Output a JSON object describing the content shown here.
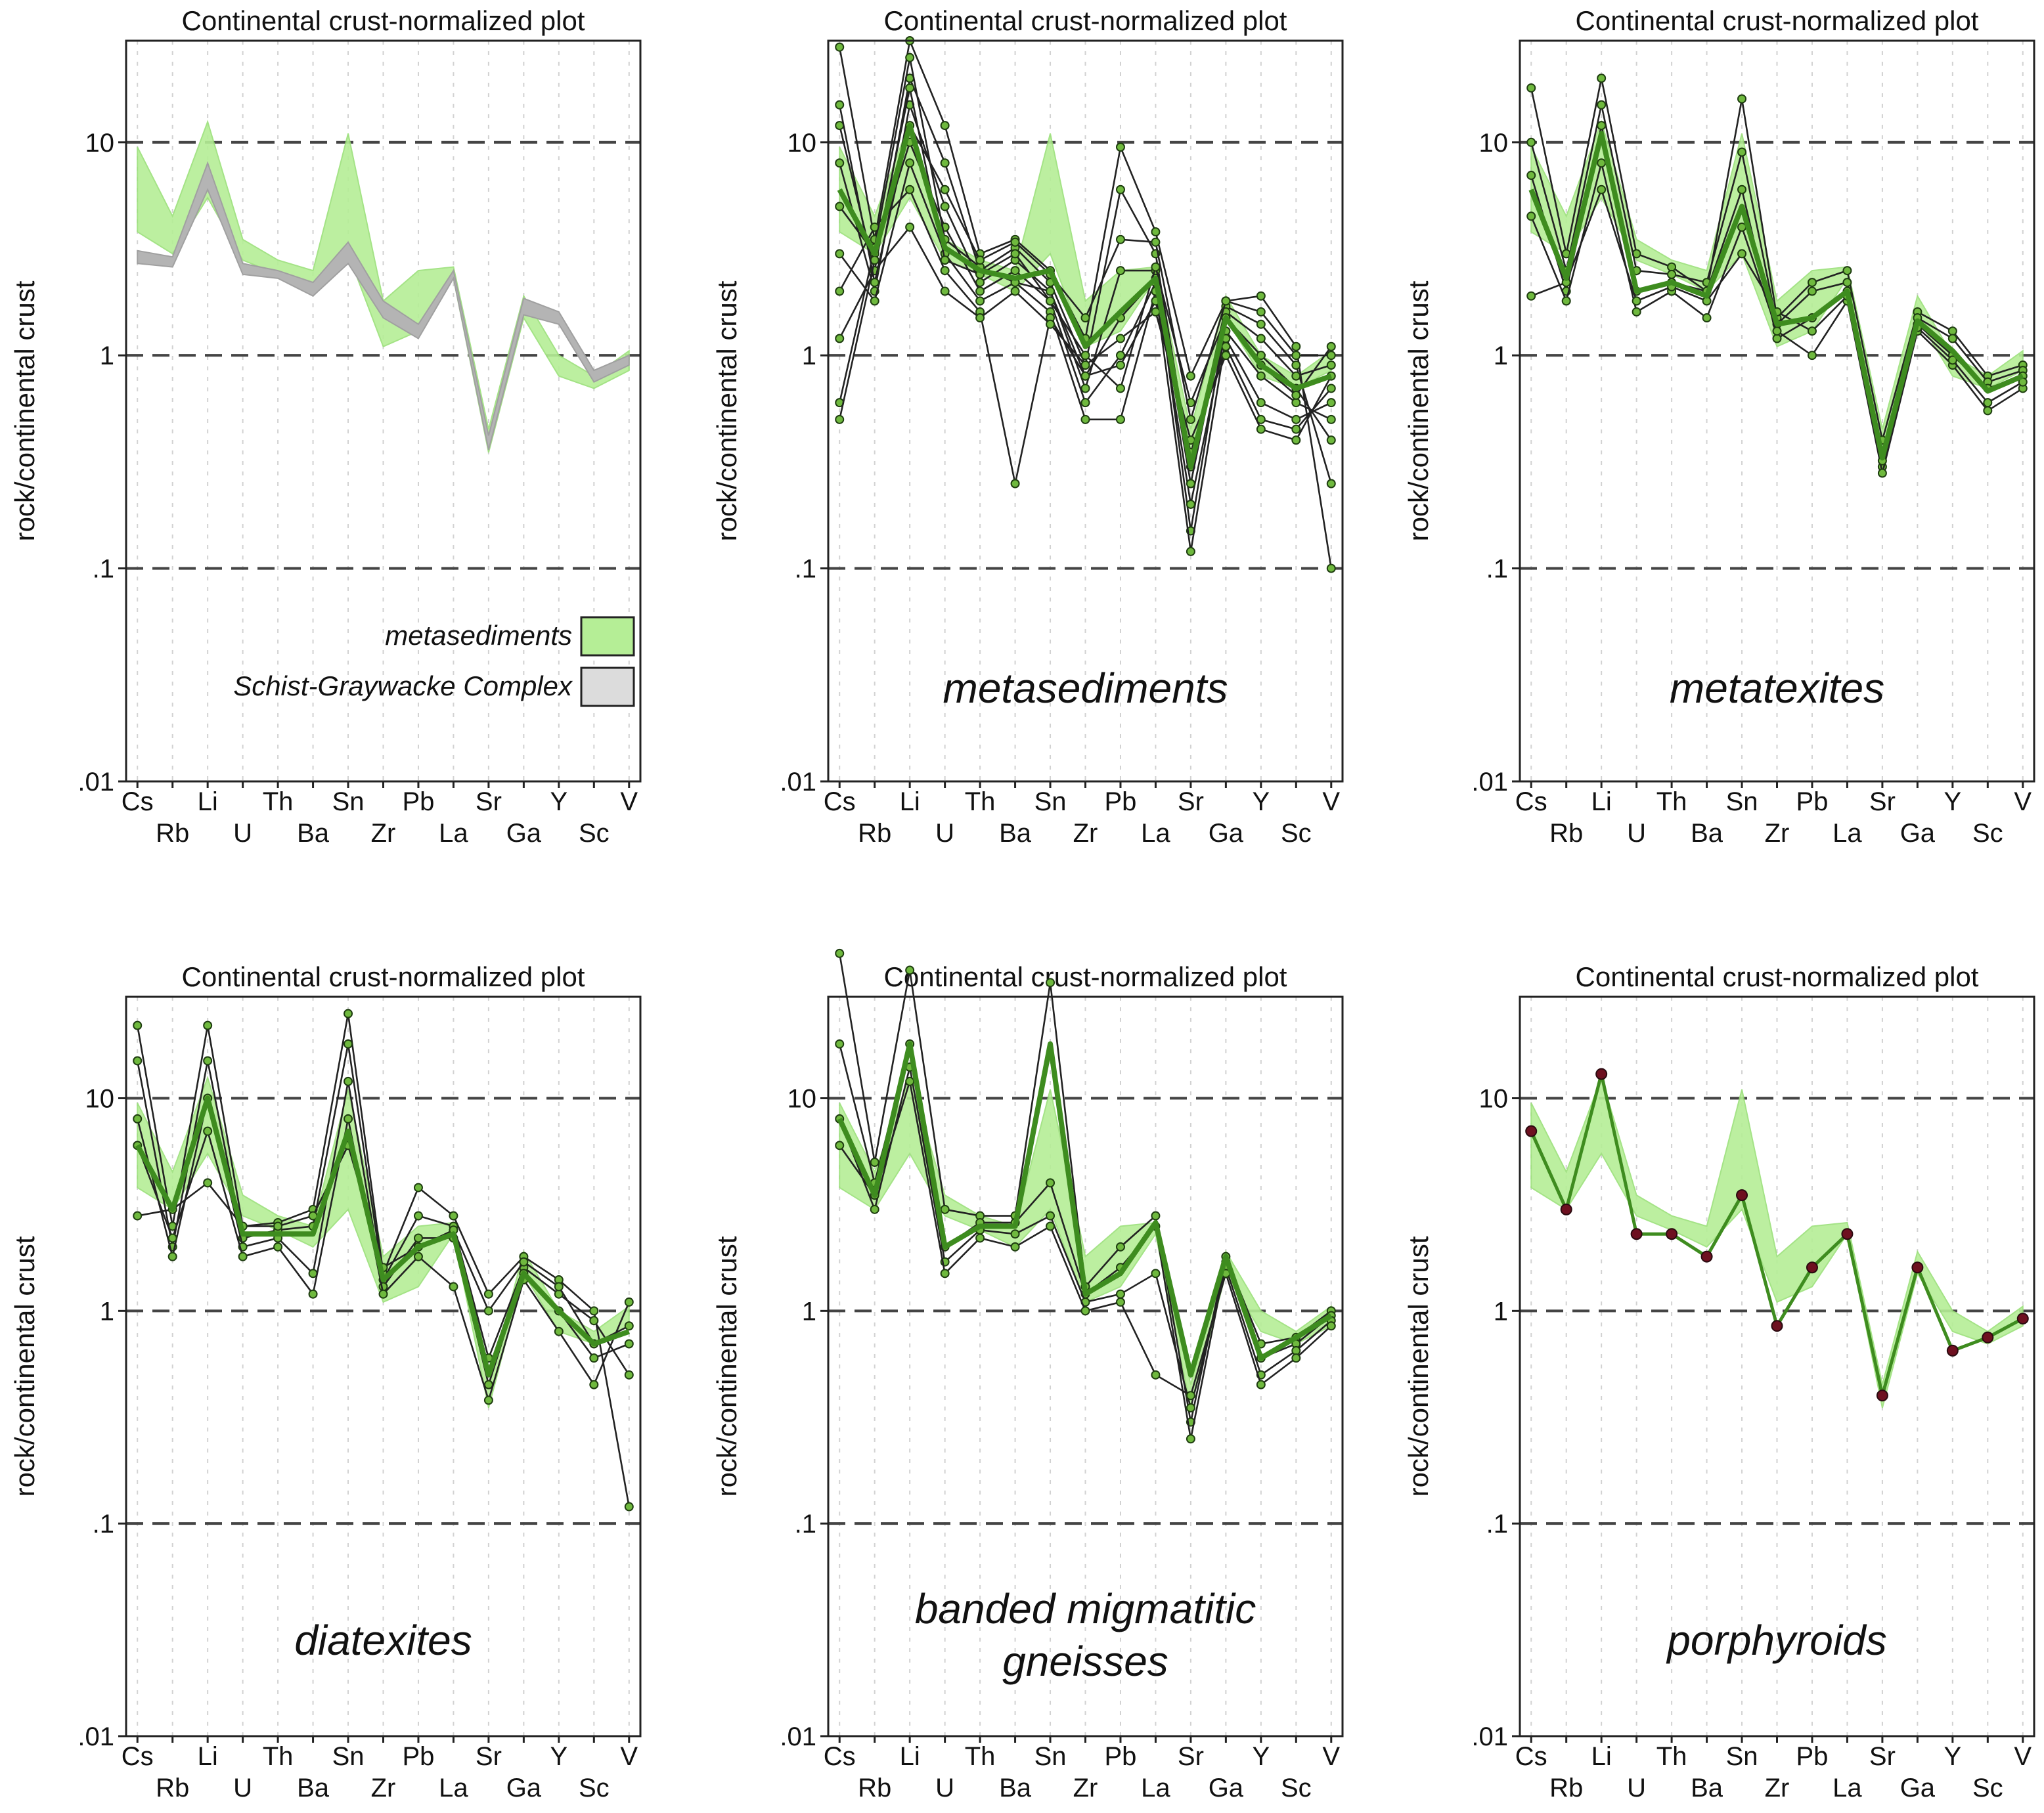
{
  "colors": {
    "band_fill": "#b5ee96",
    "band_edge": "#9be07a",
    "scgw_fill": "#b4b4b4",
    "sample_line": "#222222",
    "mean_line": "#3e8c1f",
    "marker_fill": "#6fb93e",
    "dark_marker": "#6e1020",
    "ref_dash": "#444444",
    "grid": "#d2d2d2"
  },
  "elements": [
    "Cs",
    "Rb",
    "Li",
    "U",
    "Th",
    "Ba",
    "Sn",
    "Zr",
    "Pb",
    "La",
    "Sr",
    "Ga",
    "Y",
    "Sc",
    "V"
  ],
  "ylabel": "rock/continental crust",
  "ytick_labels": [
    ".01",
    ".1",
    "1",
    "10"
  ],
  "legend": [
    {
      "label": "metasediments",
      "color": "#b5ee96"
    },
    {
      "label": "Schist-Graywacke Complex",
      "color": "#dcdcdc"
    }
  ],
  "chart_data": [
    {
      "type": "line",
      "title": "Continental crust-normalized plot",
      "caption": "",
      "yscale": "log",
      "ylim": [
        0.01,
        30
      ],
      "x": [
        "Cs",
        "Rb",
        "Li",
        "U",
        "Th",
        "Ba",
        "Sn",
        "Zr",
        "Pb",
        "La",
        "Sr",
        "Ga",
        "Y",
        "Sc",
        "V"
      ],
      "band": {
        "lower": [
          3.8,
          3.0,
          5.5,
          2.8,
          2.4,
          2.0,
          3.0,
          1.1,
          1.3,
          2.3,
          0.35,
          1.5,
          0.8,
          0.7,
          0.85
        ],
        "upper": [
          9.5,
          4.5,
          12.5,
          3.5,
          2.8,
          2.5,
          11.0,
          1.8,
          2.5,
          2.6,
          0.45,
          1.9,
          1.0,
          0.8,
          1.05
        ]
      },
      "reference_band": {
        "name": "Schist-Graywacke Complex",
        "lower": [
          2.7,
          2.6,
          6.0,
          2.4,
          2.3,
          1.9,
          2.7,
          1.5,
          1.2,
          2.3,
          0.36,
          1.55,
          1.4,
          0.75,
          0.9
        ],
        "upper": [
          3.1,
          2.9,
          8.0,
          2.7,
          2.5,
          2.2,
          3.4,
          1.8,
          1.4,
          2.5,
          0.42,
          1.85,
          1.6,
          0.85,
          1.0
        ]
      }
    },
    {
      "type": "line",
      "title": "Continental crust-normalized plot",
      "caption": "metasediments",
      "yscale": "log",
      "ylim": [
        0.01,
        30
      ],
      "x": [
        "Cs",
        "Rb",
        "Li",
        "U",
        "Th",
        "Ba",
        "Sn",
        "Zr",
        "Pb",
        "La",
        "Sr",
        "Ga",
        "Y",
        "Sc",
        "V"
      ],
      "band": {
        "lower": [
          3.8,
          3.0,
          5.5,
          2.8,
          2.4,
          2.0,
          3.0,
          1.1,
          1.3,
          2.3,
          0.35,
          1.5,
          0.8,
          0.7,
          0.85
        ],
        "upper": [
          9.5,
          4.5,
          12.5,
          3.5,
          2.8,
          2.5,
          11.0,
          1.8,
          2.5,
          2.6,
          0.45,
          1.9,
          1.0,
          0.8,
          1.05
        ]
      },
      "series": [
        {
          "values": [
            28,
            3.5,
            30,
            12,
            3,
            3.5,
            2.5,
            1.2,
            9.5,
            3.8,
            0.8,
            1.8,
            1.9,
            1.1,
            0.1
          ]
        },
        {
          "values": [
            12,
            2.5,
            20,
            8,
            2.5,
            3.2,
            2.2,
            0.9,
            6.0,
            3.0,
            0.3,
            1.7,
            1.4,
            0.9,
            0.25
          ]
        },
        {
          "values": [
            8,
            2.0,
            15,
            5,
            2.2,
            2.8,
            2.0,
            0.7,
            2.5,
            2.5,
            0.15,
            1.5,
            1.0,
            0.7,
            0.4
          ]
        },
        {
          "values": [
            5,
            3.0,
            10,
            4,
            2.0,
            2.5,
            1.8,
            0.6,
            1.0,
            2.2,
            0.2,
            1.3,
            0.8,
            0.6,
            0.5
          ]
        },
        {
          "values": [
            3,
            1.8,
            8,
            3,
            1.8,
            2.2,
            1.6,
            0.5,
            0.5,
            2.0,
            0.12,
            1.2,
            0.6,
            0.5,
            0.6
          ]
        },
        {
          "values": [
            2,
            4.0,
            6,
            2.5,
            1.6,
            0.25,
            1.5,
            0.8,
            0.9,
            1.8,
            0.35,
            1.1,
            0.5,
            0.45,
            0.7
          ]
        },
        {
          "values": [
            1.2,
            2.5,
            4,
            2,
            1.5,
            2.0,
            1.4,
            0.9,
            1.2,
            1.6,
            0.4,
            1.0,
            0.45,
            0.4,
            0.8
          ]
        },
        {
          "values": [
            0.6,
            3.2,
            25,
            3.5,
            2.6,
            2.2,
            2.0,
            0.8,
            1.5,
            2.3,
            0.25,
            1.6,
            1.2,
            0.8,
            0.9
          ]
        },
        {
          "values": [
            0.5,
            2.8,
            18,
            2.8,
            2.4,
            3.0,
            1.8,
            1.0,
            0.7,
            2.6,
            0.6,
            1.5,
            0.9,
            0.65,
            1.1
          ]
        },
        {
          "values": [
            15,
            2.2,
            12,
            6,
            2.8,
            3.4,
            2.4,
            1.5,
            3.5,
            3.4,
            0.5,
            1.8,
            1.6,
            1.0,
            1.0
          ]
        }
      ],
      "mean": [
        6.0,
        3.0,
        12.0,
        3.2,
        2.5,
        2.3,
        2.5,
        1.1,
        1.6,
        2.3,
        0.3,
        1.5,
        0.9,
        0.7,
        0.8
      ]
    },
    {
      "type": "line",
      "title": "Continental crust-normalized plot",
      "caption": "metatexites",
      "yscale": "log",
      "ylim": [
        0.01,
        30
      ],
      "x": [
        "Cs",
        "Rb",
        "Li",
        "U",
        "Th",
        "Ba",
        "Sn",
        "Zr",
        "Pb",
        "La",
        "Sr",
        "Ga",
        "Y",
        "Sc",
        "V"
      ],
      "band": {
        "lower": [
          3.8,
          3.0,
          5.5,
          2.8,
          2.4,
          2.0,
          3.0,
          1.1,
          1.3,
          2.3,
          0.35,
          1.5,
          0.8,
          0.7,
          0.85
        ],
        "upper": [
          9.5,
          4.5,
          12.5,
          3.5,
          2.8,
          2.5,
          11.0,
          1.8,
          2.5,
          2.6,
          0.45,
          1.9,
          1.0,
          0.8,
          1.05
        ]
      },
      "series": [
        {
          "values": [
            18,
            3.0,
            20,
            3.0,
            2.6,
            2.0,
            16,
            1.5,
            2.2,
            2.5,
            0.4,
            1.6,
            1.3,
            0.8,
            0.9
          ]
        },
        {
          "values": [
            10,
            2.5,
            15,
            2.5,
            2.4,
            2.2,
            9,
            1.4,
            2.0,
            2.2,
            0.35,
            1.5,
            1.2,
            0.75,
            0.85
          ]
        },
        {
          "values": [
            7,
            2.0,
            12,
            2.0,
            2.2,
            2.0,
            6,
            1.2,
            1.5,
            2.0,
            0.3,
            1.4,
            1.0,
            0.7,
            0.8
          ]
        },
        {
          "values": [
            4.5,
            1.8,
            8,
            1.6,
            2.0,
            1.5,
            4,
            1.3,
            1.0,
            1.8,
            0.28,
            1.3,
            0.9,
            0.55,
            0.7
          ]
        },
        {
          "values": [
            1.9,
            2.2,
            6,
            1.8,
            2.1,
            1.8,
            3,
            1.6,
            1.3,
            1.9,
            0.32,
            1.35,
            0.95,
            0.6,
            0.75
          ]
        }
      ],
      "mean": [
        6.0,
        2.3,
        11.0,
        2.0,
        2.2,
        1.9,
        5.0,
        1.4,
        1.5,
        2.0,
        0.33,
        1.45,
        1.05,
        0.68,
        0.8
      ]
    },
    {
      "type": "line",
      "title": "Continental crust-normalized plot",
      "caption": "diatexites",
      "yscale": "log",
      "ylim": [
        0.01,
        30
      ],
      "x": [
        "Cs",
        "Rb",
        "Li",
        "U",
        "Th",
        "Ba",
        "Sn",
        "Zr",
        "Pb",
        "La",
        "Sr",
        "Ga",
        "Y",
        "Sc",
        "V"
      ],
      "band": {
        "lower": [
          3.8,
          3.0,
          5.5,
          2.8,
          2.4,
          2.0,
          3.0,
          1.1,
          1.3,
          2.3,
          0.35,
          1.5,
          0.8,
          0.7,
          0.85
        ],
        "upper": [
          9.5,
          4.5,
          12.5,
          3.5,
          2.8,
          2.5,
          11.0,
          1.8,
          2.5,
          2.6,
          0.45,
          1.9,
          1.0,
          0.8,
          1.05
        ]
      },
      "series": [
        {
          "values": [
            22,
            2.5,
            22,
            2.5,
            2.6,
            3.0,
            25,
            1.5,
            3.8,
            2.8,
            1.2,
            1.8,
            1.4,
            1.0,
            0.12
          ]
        },
        {
          "values": [
            15,
            2.0,
            15,
            2.2,
            2.4,
            2.5,
            18,
            1.4,
            2.8,
            2.5,
            0.6,
            1.6,
            1.2,
            0.9,
            0.5
          ]
        },
        {
          "values": [
            8,
            1.8,
            10,
            2.0,
            2.2,
            1.5,
            12,
            1.3,
            2.2,
            2.2,
            0.45,
            1.5,
            1.0,
            0.6,
            0.7
          ]
        },
        {
          "values": [
            6,
            2.2,
            7,
            1.8,
            2.0,
            1.2,
            8,
            1.2,
            1.8,
            1.3,
            0.38,
            1.4,
            0.8,
            0.45,
            1.1
          ]
        },
        {
          "values": [
            2.8,
            3.0,
            4,
            2.5,
            2.5,
            2.8,
            6,
            1.6,
            2.0,
            2.4,
            1.0,
            1.7,
            1.3,
            0.7,
            0.85
          ]
        }
      ],
      "mean": [
        6.0,
        3.0,
        10.0,
        2.3,
        2.3,
        2.3,
        7.0,
        1.4,
        2.0,
        2.3,
        0.5,
        1.5,
        1.0,
        0.7,
        0.8
      ]
    },
    {
      "type": "line",
      "title": "Continental crust-normalized plot",
      "caption": "banded migmatitic gneisses",
      "yscale": "log",
      "ylim": [
        0.01,
        30
      ],
      "x": [
        "Cs",
        "Rb",
        "Li",
        "U",
        "Th",
        "Ba",
        "Sn",
        "Zr",
        "Pb",
        "La",
        "Sr",
        "Ga",
        "Y",
        "Sc",
        "V"
      ],
      "band": {
        "lower": [
          3.8,
          3.0,
          5.5,
          2.8,
          2.4,
          2.0,
          3.0,
          1.1,
          1.3,
          2.3,
          0.35,
          1.5,
          0.8,
          0.7,
          0.85
        ],
        "upper": [
          9.5,
          4.5,
          12.5,
          3.5,
          2.8,
          2.5,
          11.0,
          1.8,
          2.5,
          2.6,
          0.45,
          1.9,
          1.0,
          0.8,
          1.05
        ]
      },
      "series": [
        {
          "values": [
            48,
            5.0,
            40,
            3.0,
            2.8,
            2.8,
            35,
            1.3,
            2.0,
            2.8,
            0.3,
            1.8,
            0.7,
            0.75,
            1.0
          ]
        },
        {
          "values": [
            18,
            4.0,
            18,
            2.0,
            2.6,
            2.6,
            4.0,
            1.2,
            1.6,
            2.5,
            0.25,
            1.7,
            0.6,
            0.7,
            0.95
          ]
        },
        {
          "values": [
            8,
            3.0,
            14,
            1.7,
            2.4,
            2.3,
            2.8,
            1.1,
            1.2,
            1.5,
            0.35,
            1.6,
            0.5,
            0.65,
            0.9
          ]
        },
        {
          "values": [
            6,
            3.5,
            12,
            1.5,
            2.2,
            2.0,
            2.5,
            1.0,
            1.1,
            0.5,
            0.4,
            1.5,
            0.45,
            0.6,
            0.85
          ]
        }
      ],
      "mean": [
        8.0,
        3.5,
        18.0,
        2.0,
        2.5,
        2.5,
        18.0,
        1.2,
        1.5,
        2.6,
        0.5,
        1.8,
        0.6,
        0.75,
        0.95
      ]
    },
    {
      "type": "line",
      "title": "Continental crust-normalized plot",
      "caption": "porphyroids",
      "yscale": "log",
      "ylim": [
        0.01,
        30
      ],
      "x": [
        "Cs",
        "Rb",
        "Li",
        "U",
        "Th",
        "Ba",
        "Sn",
        "Zr",
        "Pb",
        "La",
        "Sr",
        "Ga",
        "Y",
        "Sc",
        "V"
      ],
      "band": {
        "lower": [
          3.8,
          3.0,
          5.5,
          2.8,
          2.4,
          2.0,
          3.0,
          1.1,
          1.3,
          2.3,
          0.35,
          1.5,
          0.8,
          0.7,
          0.85
        ],
        "upper": [
          9.5,
          4.5,
          12.5,
          3.5,
          2.8,
          2.5,
          11.0,
          1.8,
          2.5,
          2.6,
          0.45,
          1.9,
          1.0,
          0.8,
          1.05
        ]
      },
      "series": [
        {
          "values": [
            7,
            3.0,
            13,
            2.3,
            2.3,
            1.8,
            3.5,
            0.85,
            1.6,
            2.3,
            0.4,
            1.6,
            0.65,
            0.75,
            0.92
          ]
        }
      ],
      "mean": [
        7,
        3.0,
        13,
        2.3,
        2.3,
        1.8,
        3.5,
        0.85,
        1.6,
        2.3,
        0.4,
        1.6,
        0.65,
        0.75,
        0.92
      ]
    }
  ]
}
